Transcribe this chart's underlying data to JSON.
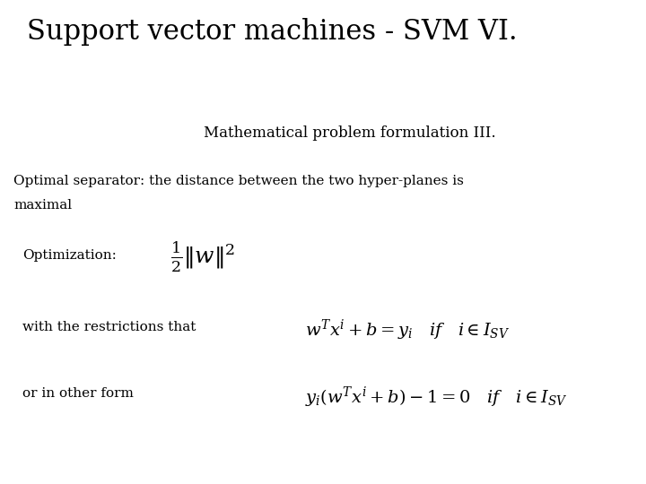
{
  "title": "Support vector machines - SVM VI.",
  "subtitle": "Mathematical problem formulation III.",
  "line1": "Optimal separator: the distance between the two hyper-planes is",
  "line1b": "maximal",
  "opt_label": "Optimization:",
  "opt_formula": "$\\frac{1}{2} \\| w \\|^2$",
  "restr_label": "with the restrictions that",
  "restr_formula": "$w^T x^i + b = y_i \\quad \\mathit{if} \\quad i \\in I_{SV}$",
  "other_label": "or in other form",
  "other_formula": "$y_i(w^T x^i + b) - 1 = 0 \\quad \\mathit{if} \\quad i \\in I_{SV}$",
  "bg_color": "#ffffff",
  "text_color": "#000000",
  "title_fontsize": 22,
  "subtitle_fontsize": 12,
  "body_fontsize": 11,
  "formula_fontsize": 14,
  "opt_formula_fontsize": 18
}
